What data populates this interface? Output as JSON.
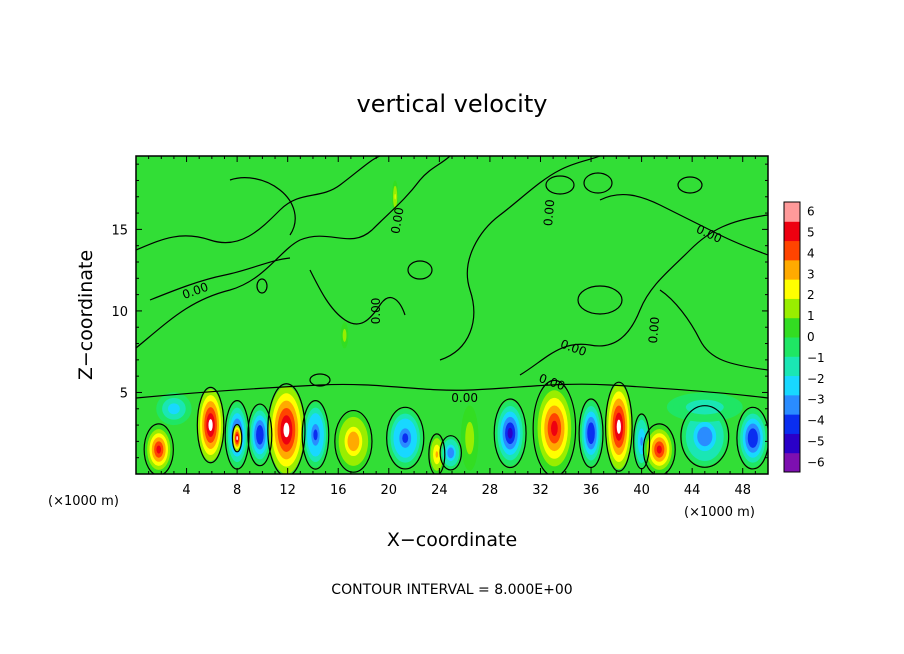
{
  "chart_data": {
    "type": "heatmap",
    "title": "vertical velocity",
    "xlabel": "X−coordinate",
    "ylabel": "Z−coordinate",
    "x_unit_left": "(×1000 m)",
    "x_unit_right": "(×1000 m)",
    "xlim": [
      0,
      50
    ],
    "ylim": [
      0,
      19.5
    ],
    "x_ticks": [
      {
        "value": 4,
        "label": "4"
      },
      {
        "value": 8,
        "label": "8"
      },
      {
        "value": 12,
        "label": "12"
      },
      {
        "value": 16,
        "label": "16"
      },
      {
        "value": 20,
        "label": "20"
      },
      {
        "value": 24,
        "label": "24"
      },
      {
        "value": 28,
        "label": "28"
      },
      {
        "value": 32,
        "label": "32"
      },
      {
        "value": 36,
        "label": "36"
      },
      {
        "value": 40,
        "label": "40"
      },
      {
        "value": 44,
        "label": "44"
      },
      {
        "value": 48,
        "label": "48"
      }
    ],
    "y_ticks": [
      {
        "value": 5,
        "label": "5"
      },
      {
        "value": 10,
        "label": "10"
      },
      {
        "value": 15,
        "label": "15"
      }
    ],
    "footer": "CONTOUR INTERVAL = 8.000E+00",
    "colorbar": {
      "min": -6,
      "max": 6,
      "ticks": [
        {
          "value": 6,
          "label": "6"
        },
        {
          "value": 5,
          "label": "5"
        },
        {
          "value": 4,
          "label": "4"
        },
        {
          "value": 3,
          "label": "3"
        },
        {
          "value": 2,
          "label": "2"
        },
        {
          "value": 1,
          "label": "1"
        },
        {
          "value": 0,
          "label": "0"
        },
        {
          "value": -1,
          "label": "−1"
        },
        {
          "value": -2,
          "label": "−2"
        },
        {
          "value": -3,
          "label": "−3"
        },
        {
          "value": -4,
          "label": "−4"
        },
        {
          "value": -5,
          "label": "−5"
        },
        {
          "value": -6,
          "label": "−6"
        }
      ],
      "colors": [
        "#7d0fb0",
        "#2a00c8",
        "#0a2ef0",
        "#2a8cff",
        "#18d8ff",
        "#1ae6b4",
        "#1fe664",
        "#33dd22",
        "#99ee00",
        "#ffff00",
        "#ffaa00",
        "#ff4400",
        "#ee0010",
        "#ff9a9a"
      ]
    },
    "contour_labels": [
      {
        "text": "0.00",
        "x": 4.8,
        "z": 11.0,
        "angle": -20
      },
      {
        "text": "0.00",
        "x": 21.0,
        "z": 15.5,
        "angle": -80
      },
      {
        "text": "0.00",
        "x": 33.0,
        "z": 16.0,
        "angle": -85
      },
      {
        "text": "0.00",
        "x": 45.2,
        "z": 14.5,
        "angle": 25
      },
      {
        "text": "0.00",
        "x": 19.3,
        "z": 10.0,
        "angle": -90
      },
      {
        "text": "0.00",
        "x": 34.5,
        "z": 7.5,
        "angle": 20
      },
      {
        "text": "0.00",
        "x": 41.3,
        "z": 8.8,
        "angle": -85
      },
      {
        "text": "0.00",
        "x": 26.0,
        "z": 4.4,
        "angle": 0
      },
      {
        "text": "0.00",
        "x": 32.8,
        "z": 5.4,
        "angle": 20
      }
    ],
    "cells": [
      {
        "x": 1.8,
        "z": 1.5,
        "rx": 1.1,
        "rz": 1.5,
        "v": 5.0
      },
      {
        "x": 5.9,
        "z": 3.0,
        "rx": 1.0,
        "rz": 2.2,
        "v": 6.0
      },
      {
        "x": 8.0,
        "z": 2.4,
        "rx": 0.9,
        "rz": 2.0,
        "v": -5.0
      },
      {
        "x": 8.0,
        "z": 2.2,
        "rx": 0.35,
        "rz": 0.8,
        "v": 6.5
      },
      {
        "x": 9.8,
        "z": 2.4,
        "rx": 0.9,
        "rz": 1.8,
        "v": -4.5
      },
      {
        "x": 11.9,
        "z": 2.7,
        "rx": 1.4,
        "rz": 2.7,
        "v": 6.5
      },
      {
        "x": 14.2,
        "z": 2.4,
        "rx": 1.0,
        "rz": 2.0,
        "v": -4.0
      },
      {
        "x": 17.2,
        "z": 2.0,
        "rx": 1.4,
        "rz": 1.8,
        "v": 3.5
      },
      {
        "x": 21.3,
        "z": 2.2,
        "rx": 1.4,
        "rz": 1.8,
        "v": -4.0
      },
      {
        "x": 23.8,
        "z": 1.2,
        "rx": 0.6,
        "rz": 1.2,
        "v": 3.0
      },
      {
        "x": 24.9,
        "z": 1.3,
        "rx": 0.8,
        "rz": 1.0,
        "v": -3.5
      },
      {
        "x": 26.4,
        "z": 2.2,
        "rx": 0.7,
        "rz": 2.0,
        "v": 1.5
      },
      {
        "x": 29.6,
        "z": 2.5,
        "rx": 1.2,
        "rz": 2.0,
        "v": -5.0
      },
      {
        "x": 33.1,
        "z": 2.8,
        "rx": 1.6,
        "rz": 2.8,
        "v": 5.5
      },
      {
        "x": 36.0,
        "z": 2.5,
        "rx": 0.9,
        "rz": 2.0,
        "v": -4.5
      },
      {
        "x": 38.2,
        "z": 2.9,
        "rx": 1.0,
        "rz": 2.6,
        "v": 6.5
      },
      {
        "x": 40.0,
        "z": 2.0,
        "rx": 0.6,
        "rz": 1.6,
        "v": -3.0
      },
      {
        "x": 41.4,
        "z": 1.5,
        "rx": 1.2,
        "rz": 1.5,
        "v": 5.0
      },
      {
        "x": 45.0,
        "z": 2.3,
        "rx": 1.8,
        "rz": 1.8,
        "v": -3.5
      },
      {
        "x": 48.8,
        "z": 2.2,
        "rx": 1.2,
        "rz": 1.8,
        "v": -4.5
      },
      {
        "x": 3.0,
        "z": 4.0,
        "rx": 1.4,
        "rz": 1.0,
        "v": -2.5
      },
      {
        "x": 45.0,
        "z": 4.1,
        "rx": 3.0,
        "rz": 0.9,
        "v": -1.5
      },
      {
        "x": 20.5,
        "z": 17.0,
        "rx": 0.25,
        "rz": 1.0,
        "v": 2.0
      },
      {
        "x": 16.5,
        "z": 8.5,
        "rx": 0.3,
        "rz": 0.8,
        "v": 1.5
      }
    ]
  }
}
